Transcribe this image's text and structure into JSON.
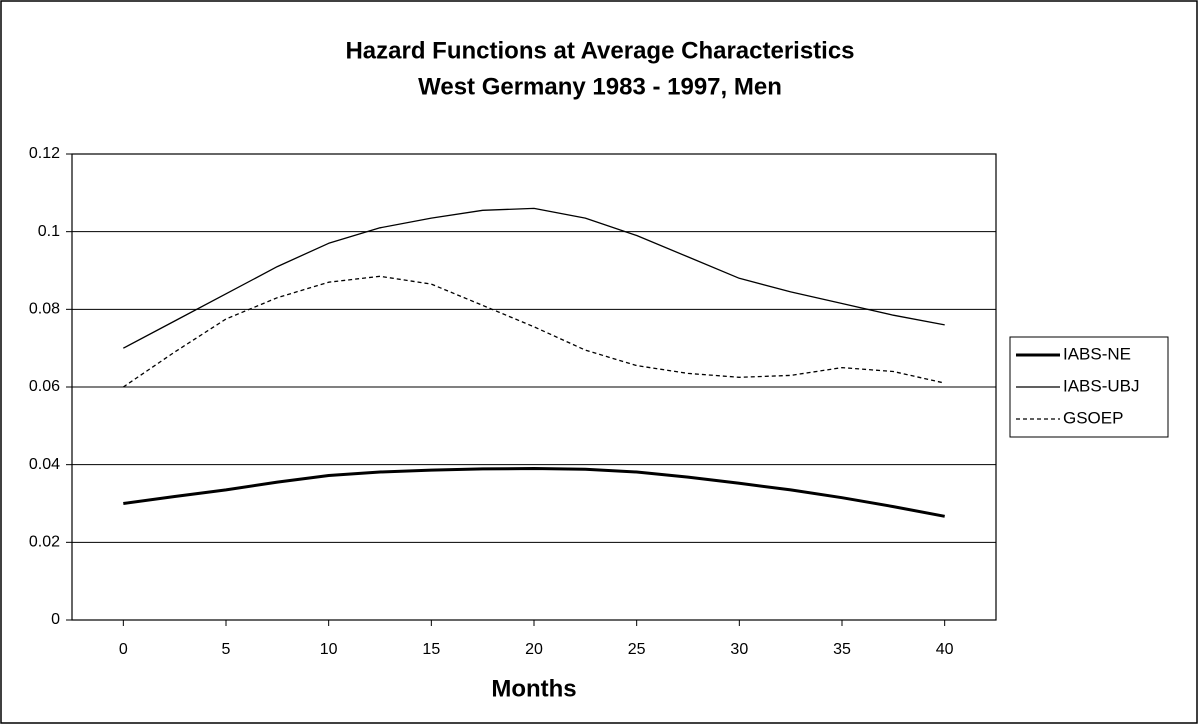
{
  "chart_data": {
    "type": "line",
    "title": "Hazard Functions at Average Characteristics",
    "subtitle": "West Germany 1983 - 1997, Men",
    "x_label": "Months",
    "x": [
      0,
      2.5,
      5,
      7.5,
      10,
      12.5,
      15,
      17.5,
      20,
      22.5,
      25,
      27.5,
      30,
      32.5,
      35,
      37.5,
      40
    ],
    "series": [
      {
        "name": "IABS-NE",
        "color": "#000000",
        "line_width": 3,
        "dash": "solid",
        "values": [
          0.03,
          0.0318,
          0.0335,
          0.0355,
          0.0372,
          0.0381,
          0.0386,
          0.0389,
          0.039,
          0.0388,
          0.0381,
          0.0368,
          0.0352,
          0.0335,
          0.0315,
          0.0292,
          0.0267
        ]
      },
      {
        "name": "IABS-UBJ",
        "color": "#000000",
        "line_width": 1.3,
        "dash": "solid",
        "values": [
          0.07,
          0.077,
          0.084,
          0.091,
          0.097,
          0.101,
          0.1035,
          0.1055,
          0.106,
          0.1035,
          0.099,
          0.0935,
          0.088,
          0.0845,
          0.0815,
          0.0785,
          0.076
        ]
      },
      {
        "name": "GSOEP",
        "color": "#000000",
        "line_width": 1.3,
        "dash": "dotted",
        "values": [
          0.06,
          0.069,
          0.0775,
          0.083,
          0.087,
          0.0885,
          0.0865,
          0.081,
          0.0755,
          0.0695,
          0.0655,
          0.0635,
          0.0625,
          0.063,
          0.065,
          0.064,
          0.061
        ]
      }
    ],
    "xlim": [
      -2.5,
      42.5
    ],
    "xticks": [
      0,
      5,
      10,
      15,
      20,
      25,
      30,
      35,
      40
    ],
    "ylim": [
      0,
      0.12
    ],
    "yticks": [
      0,
      0.02,
      0.04,
      0.06,
      0.08,
      0.1,
      0.12
    ],
    "grid": true,
    "legend": "right"
  }
}
